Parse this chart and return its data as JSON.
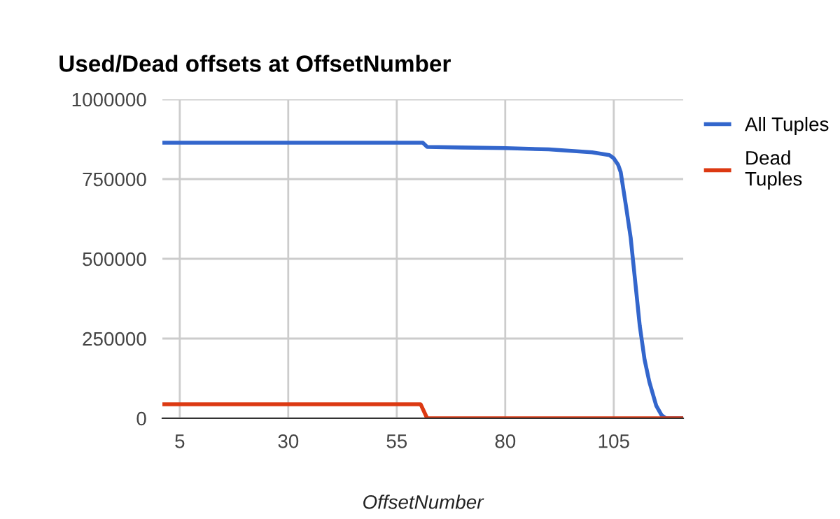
{
  "chart_data": {
    "type": "line",
    "title": "Used/Dead offsets at OffsetNumber",
    "xlabel": "OffsetNumber",
    "xlim": [
      1,
      121
    ],
    "xticks": [
      5,
      30,
      55,
      80,
      105
    ],
    "ylim": [
      0,
      1000000
    ],
    "yticks": [
      0,
      250000,
      500000,
      750000,
      1000000
    ],
    "grid": true,
    "legend": "top right",
    "marker": "none",
    "line_style": "solid",
    "series": [
      {
        "name": "All Tuples",
        "color": "#3366cc",
        "x": [
          1,
          60,
          61,
          62,
          70,
          80,
          90,
          100,
          104,
          105,
          106,
          106.6,
          107.8,
          108.9,
          110,
          111,
          112.1,
          113.2,
          114.8,
          116,
          117,
          121
        ],
        "values": [
          864000,
          864000,
          864000,
          851000,
          849000,
          847000,
          843000,
          834000,
          825000,
          815000,
          795000,
          772000,
          667000,
          566000,
          421000,
          289000,
          184000,
          114000,
          39000,
          10000,
          0,
          0
        ]
      },
      {
        "name": "Dead Tuples",
        "color": "#dc3912",
        "x": [
          1,
          60.5,
          62,
          121
        ],
        "values": [
          44000,
          44000,
          0,
          0
        ]
      }
    ]
  }
}
